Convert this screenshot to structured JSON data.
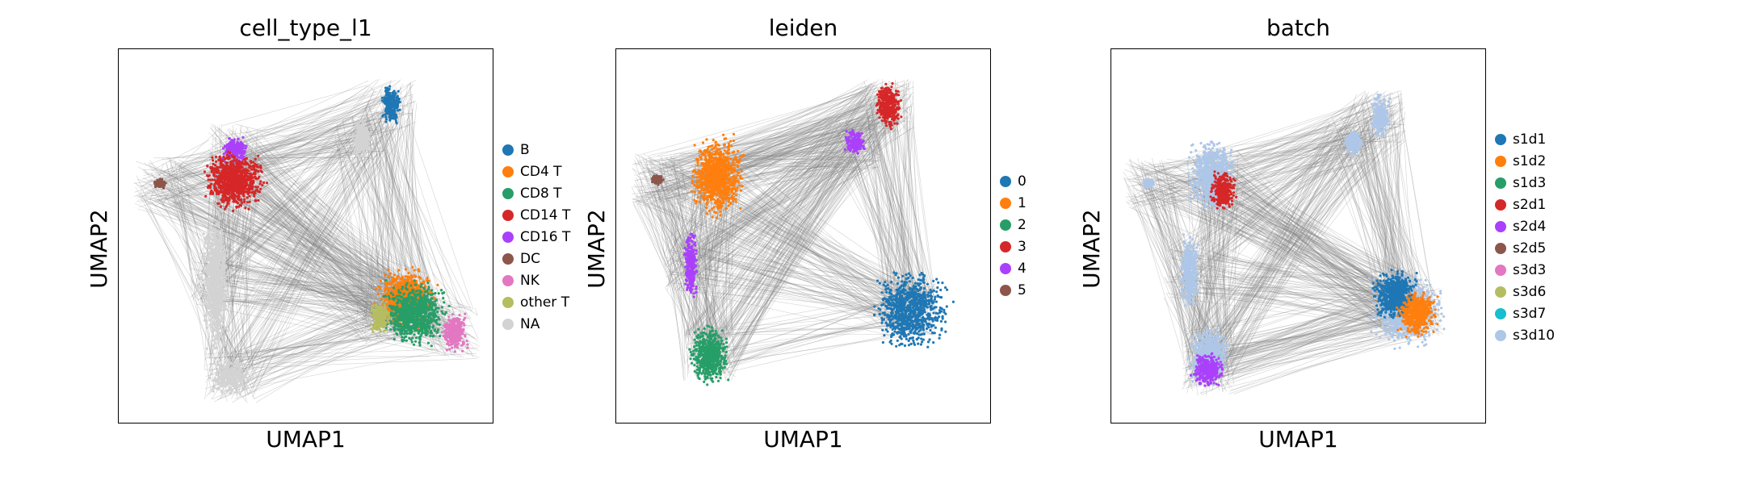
{
  "chart_data": [
    {
      "type": "scatter",
      "title": "cell_type_l1",
      "xlabel": "UMAP1",
      "ylabel": "UMAP2",
      "grid": false,
      "legend": "right",
      "background_edges_color": "#808080",
      "legend_entries": [
        {
          "name": "B",
          "color": "#1f77b4"
        },
        {
          "name": "CD4 T",
          "color": "#ff7f0e"
        },
        {
          "name": "CD8 T",
          "color": "#279e68"
        },
        {
          "name": "CD14 T",
          "color": "#d62728"
        },
        {
          "name": "CD16 T",
          "color": "#aa40fc"
        },
        {
          "name": "DC",
          "color": "#8c564b"
        },
        {
          "name": "NK",
          "color": "#e377c2"
        },
        {
          "name": "other T",
          "color": "#b5bd61"
        },
        {
          "name": "NA",
          "color": "#d3d3d3"
        }
      ],
      "clusters": [
        {
          "name": "B",
          "color": "#1f77b4",
          "blobs": [
            [
              0.73,
              0.15,
              0.03,
              0.06
            ]
          ]
        },
        {
          "name": "NA",
          "color": "#d3d3d3",
          "blobs": [
            [
              0.65,
              0.24,
              0.03,
              0.06
            ],
            [
              0.26,
              0.62,
              0.04,
              0.22
            ],
            [
              0.3,
              0.88,
              0.06,
              0.05
            ]
          ]
        },
        {
          "name": "CD16 T",
          "color": "#aa40fc",
          "blobs": [
            [
              0.31,
              0.27,
              0.04,
              0.04
            ]
          ]
        },
        {
          "name": "CD14 T",
          "color": "#d62728",
          "blobs": [
            [
              0.31,
              0.35,
              0.09,
              0.09
            ]
          ]
        },
        {
          "name": "DC",
          "color": "#8c564b",
          "blobs": [
            [
              0.11,
              0.36,
              0.02,
              0.015
            ]
          ]
        },
        {
          "name": "CD4 T",
          "color": "#ff7f0e",
          "blobs": [
            [
              0.77,
              0.67,
              0.09,
              0.09
            ]
          ]
        },
        {
          "name": "CD8 T",
          "color": "#279e68",
          "blobs": [
            [
              0.79,
              0.71,
              0.1,
              0.1
            ]
          ]
        },
        {
          "name": "NK",
          "color": "#e377c2",
          "blobs": [
            [
              0.9,
              0.76,
              0.04,
              0.06
            ]
          ]
        },
        {
          "name": "other T",
          "color": "#b5bd61",
          "blobs": [
            [
              0.7,
              0.72,
              0.03,
              0.05
            ]
          ]
        }
      ]
    },
    {
      "type": "scatter",
      "title": "leiden",
      "xlabel": "UMAP1",
      "ylabel": "UMAP2",
      "grid": false,
      "legend": "right",
      "background_edges_color": "#808080",
      "legend_entries": [
        {
          "name": "0",
          "color": "#1f77b4"
        },
        {
          "name": "1",
          "color": "#ff7f0e"
        },
        {
          "name": "2",
          "color": "#279e68"
        },
        {
          "name": "3",
          "color": "#d62728"
        },
        {
          "name": "4",
          "color": "#aa40fc"
        },
        {
          "name": "5",
          "color": "#8c564b"
        }
      ],
      "clusters": [
        {
          "name": "3",
          "color": "#d62728",
          "blobs": [
            [
              0.73,
              0.15,
              0.04,
              0.07
            ]
          ]
        },
        {
          "name": "4",
          "color": "#aa40fc",
          "blobs": [
            [
              0.64,
              0.25,
              0.03,
              0.04
            ]
          ]
        },
        {
          "name": "1",
          "color": "#ff7f0e",
          "blobs": [
            [
              0.27,
              0.34,
              0.08,
              0.12
            ]
          ]
        },
        {
          "name": "5",
          "color": "#8c564b",
          "blobs": [
            [
              0.11,
              0.35,
              0.02,
              0.015
            ]
          ]
        },
        {
          "name": "4",
          "color": "#aa40fc",
          "blobs": [
            [
              0.2,
              0.58,
              0.02,
              0.1
            ]
          ]
        },
        {
          "name": "2",
          "color": "#279e68",
          "blobs": [
            [
              0.25,
              0.82,
              0.06,
              0.09
            ]
          ]
        },
        {
          "name": "0",
          "color": "#1f77b4",
          "blobs": [
            [
              0.79,
              0.7,
              0.12,
              0.12
            ]
          ]
        }
      ]
    },
    {
      "type": "scatter",
      "title": "batch",
      "xlabel": "UMAP1",
      "ylabel": "UMAP2",
      "grid": false,
      "legend": "right",
      "background_edges_color": "#808080",
      "legend_entries": [
        {
          "name": "s1d1",
          "color": "#1f77b4"
        },
        {
          "name": "s1d2",
          "color": "#ff7f0e"
        },
        {
          "name": "s1d3",
          "color": "#279e68"
        },
        {
          "name": "s2d1",
          "color": "#d62728"
        },
        {
          "name": "s2d4",
          "color": "#aa40fc"
        },
        {
          "name": "s2d5",
          "color": "#8c564b"
        },
        {
          "name": "s3d3",
          "color": "#e377c2"
        },
        {
          "name": "s3d6",
          "color": "#b5bd61"
        },
        {
          "name": "s3d7",
          "color": "#17becf"
        },
        {
          "name": "s3d10",
          "color": "#aec7e8"
        }
      ],
      "clusters": [
        {
          "name": "s3d10",
          "color": "#aec7e8",
          "blobs": [
            [
              0.72,
              0.18,
              0.03,
              0.07
            ],
            [
              0.65,
              0.25,
              0.03,
              0.04
            ],
            [
              0.27,
              0.34,
              0.07,
              0.11
            ],
            [
              0.1,
              0.36,
              0.02,
              0.015
            ],
            [
              0.21,
              0.6,
              0.03,
              0.12
            ],
            [
              0.26,
              0.82,
              0.06,
              0.09
            ],
            [
              0.79,
              0.7,
              0.11,
              0.11
            ]
          ]
        },
        {
          "name": "s1d1",
          "color": "#1f77b4",
          "blobs": [
            [
              0.76,
              0.66,
              0.07,
              0.08
            ]
          ]
        },
        {
          "name": "s1d2",
          "color": "#ff7f0e",
          "blobs": [
            [
              0.82,
              0.71,
              0.06,
              0.07
            ]
          ]
        },
        {
          "name": "s2d4",
          "color": "#aa40fc",
          "blobs": [
            [
              0.26,
              0.86,
              0.05,
              0.05
            ]
          ]
        },
        {
          "name": "s2d1",
          "color": "#d62728",
          "blobs": [
            [
              0.3,
              0.38,
              0.04,
              0.06
            ]
          ]
        }
      ]
    }
  ]
}
